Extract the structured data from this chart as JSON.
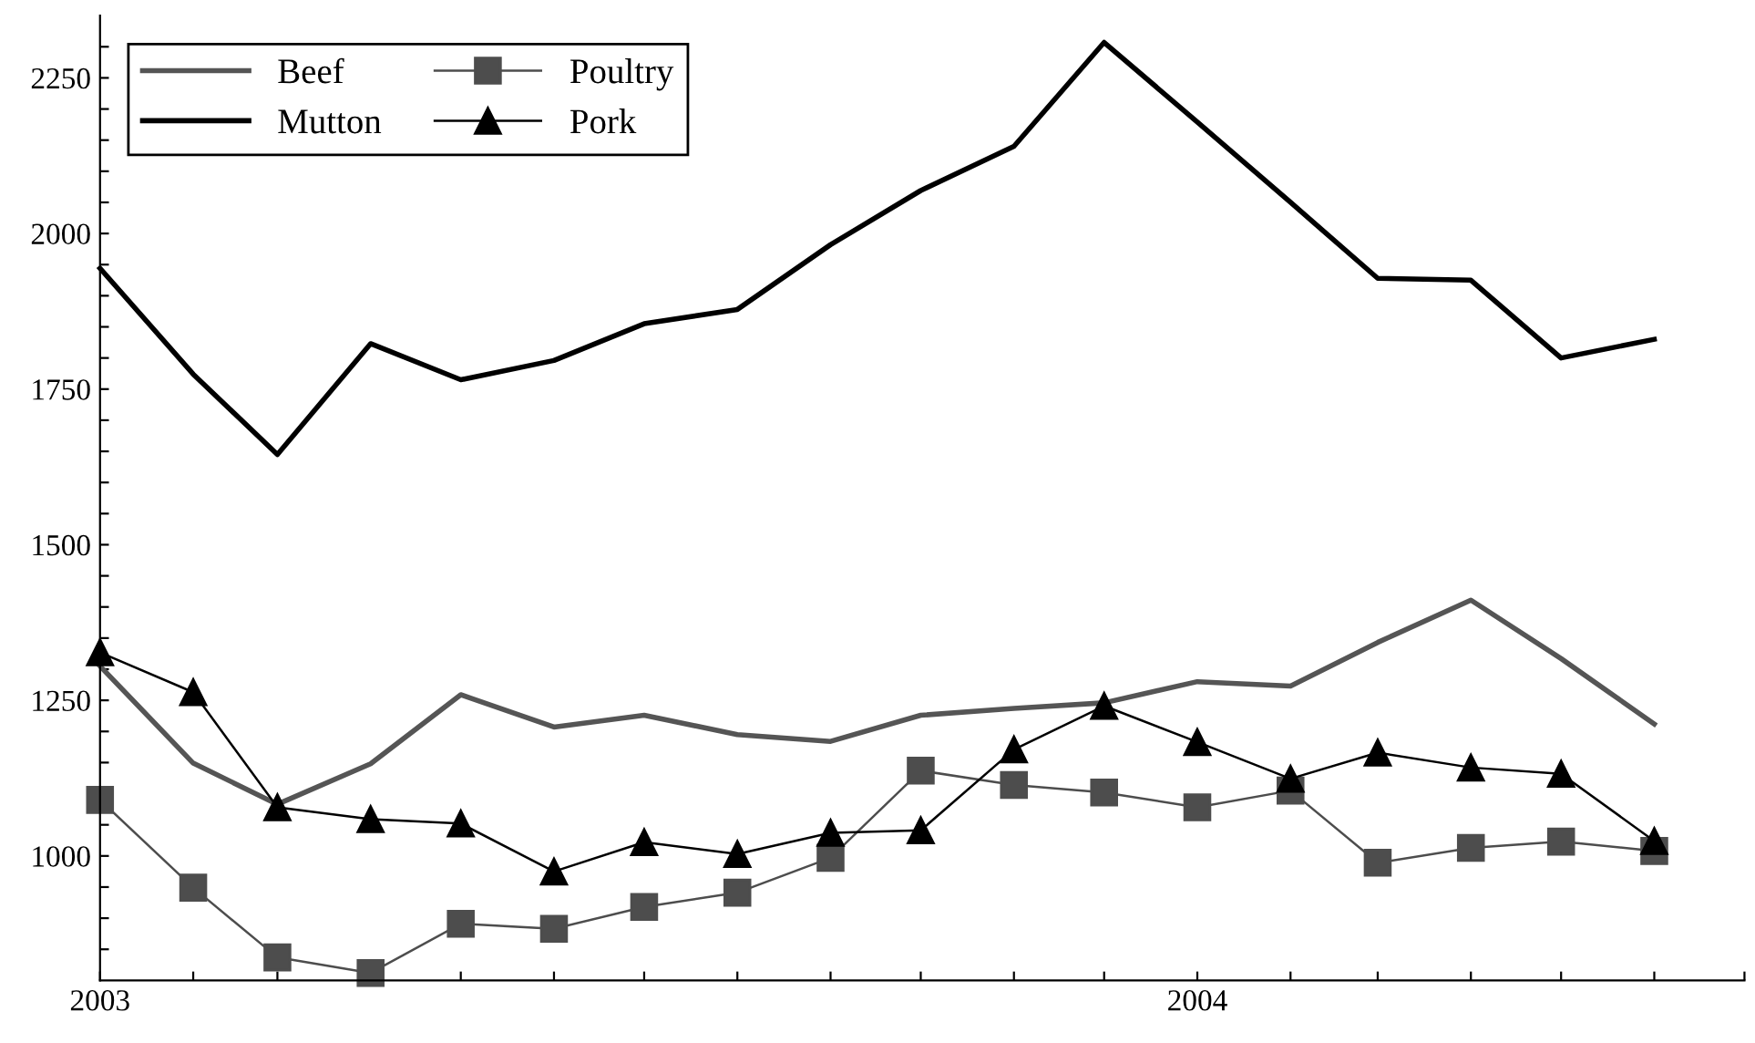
{
  "chart_data": {
    "type": "line",
    "x": [
      "2003-01",
      "2003-02",
      "2003-03",
      "2003-04",
      "2003-05",
      "2003-06",
      "2003-07",
      "2003-08",
      "2003-09",
      "2003-10",
      "2003-11",
      "2003-12",
      "2004-01",
      "2004-02",
      "2004-03",
      "2004-04",
      "2004-05",
      "2004-06"
    ],
    "series": [
      {
        "name": "Beef",
        "color": "#555555",
        "marker": "none",
        "values": [
          1305,
          1149,
          1083,
          1148,
          1259,
          1207,
          1226,
          1195,
          1184,
          1226,
          1237,
          1246,
          1280,
          1273,
          1343,
          1411,
          1317,
          1212
        ]
      },
      {
        "name": "Mutton",
        "color": "#000000",
        "marker": "none",
        "values": [
          1944,
          1774,
          1645,
          1823,
          1765,
          1796,
          1855,
          1878,
          1982,
          2069,
          2140,
          2307,
          2179,
          2050,
          1928,
          1925,
          1800,
          1830
        ]
      },
      {
        "name": "Poultry",
        "color": "#4d4d4d",
        "marker": "square",
        "values": [
          1090,
          949,
          837,
          812,
          891,
          883,
          918,
          941,
          997,
          1137,
          1114,
          1102,
          1078,
          1105,
          989,
          1013,
          1023,
          1008
        ]
      },
      {
        "name": "Pork",
        "color": "#000000",
        "marker": "triangle",
        "values": [
          1327,
          1263,
          1078,
          1059,
          1052,
          975,
          1022,
          1003,
          1037,
          1041,
          1171,
          1241,
          1183,
          1124,
          1166,
          1142,
          1132,
          1024
        ]
      }
    ],
    "xlim": [
      "2003-01",
      "2004-07"
    ],
    "xticks": [
      {
        "value": "2003-01",
        "label": "2003"
      },
      {
        "value": "2003-02",
        "label": null
      },
      {
        "value": "2003-03",
        "label": null
      },
      {
        "value": "2003-04",
        "label": null
      },
      {
        "value": "2003-05",
        "label": null
      },
      {
        "value": "2003-06",
        "label": null
      },
      {
        "value": "2003-07",
        "label": null
      },
      {
        "value": "2003-08",
        "label": null
      },
      {
        "value": "2003-09",
        "label": null
      },
      {
        "value": "2003-10",
        "label": null
      },
      {
        "value": "2003-11",
        "label": null
      },
      {
        "value": "2003-12",
        "label": null
      },
      {
        "value": "2004-01",
        "label": "2004"
      },
      {
        "value": "2004-02",
        "label": null
      },
      {
        "value": "2004-03",
        "label": null
      },
      {
        "value": "2004-04",
        "label": null
      },
      {
        "value": "2004-05",
        "label": null
      },
      {
        "value": "2004-06",
        "label": null
      },
      {
        "value": "2004-07",
        "label": null
      }
    ],
    "ylim": [
      800,
      2350
    ],
    "yticks": [
      {
        "value": 850,
        "label": null
      },
      {
        "value": 900,
        "label": null
      },
      {
        "value": 950,
        "label": null
      },
      1000,
      {
        "value": 1050,
        "label": null
      },
      {
        "value": 1100,
        "label": null
      },
      {
        "value": 1150,
        "label": null
      },
      {
        "value": 1200,
        "label": null
      },
      1250,
      {
        "value": 1300,
        "label": null
      },
      {
        "value": 1350,
        "label": null
      },
      {
        "value": 1400,
        "label": null
      },
      {
        "value": 1450,
        "label": null
      },
      1500,
      {
        "value": 1550,
        "label": null
      },
      {
        "value": 1600,
        "label": null
      },
      {
        "value": 1650,
        "label": null
      },
      {
        "value": 1700,
        "label": null
      },
      1750,
      {
        "value": 1800,
        "label": null
      },
      {
        "value": 1850,
        "label": null
      },
      {
        "value": 1900,
        "label": null
      },
      {
        "value": 1950,
        "label": null
      },
      2000,
      {
        "value": 2050,
        "label": null
      },
      {
        "value": 2100,
        "label": null
      },
      {
        "value": 2150,
        "label": null
      },
      {
        "value": 2200,
        "label": null
      },
      2250,
      {
        "value": 2300,
        "label": null
      }
    ],
    "grid": false,
    "legend": "top left",
    "line_style": "solid"
  }
}
